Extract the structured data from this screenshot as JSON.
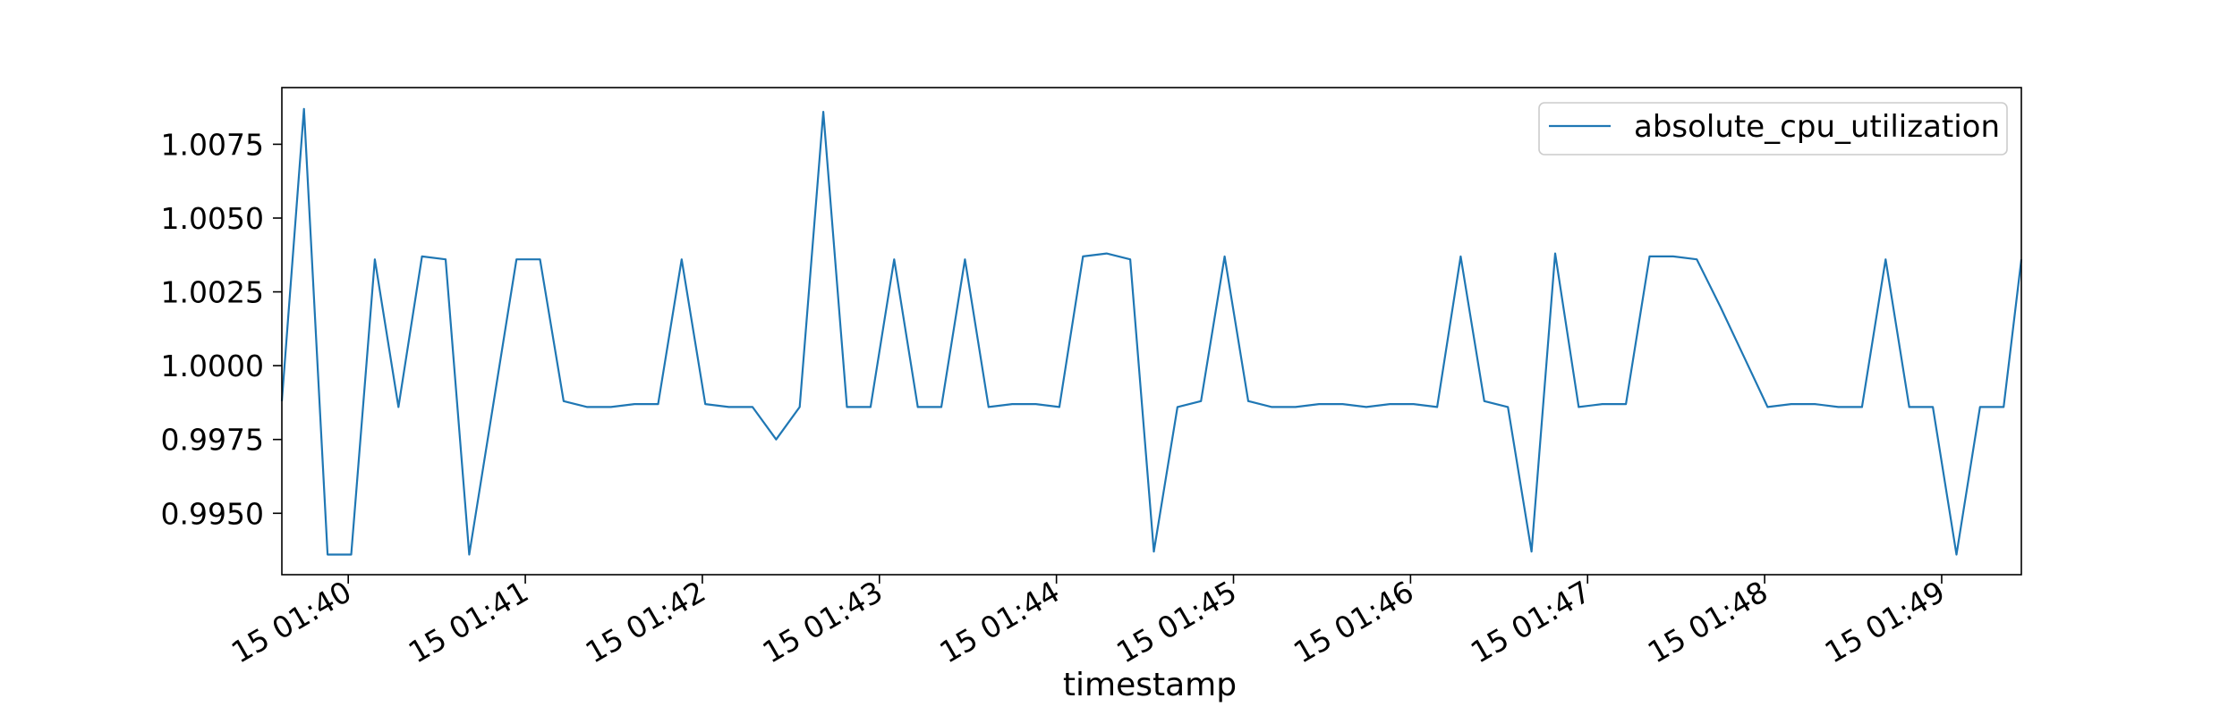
{
  "chart_data": {
    "type": "line",
    "xlabel": "timestamp",
    "ylabel": "",
    "title": "",
    "legend_position": "top-right",
    "grid": false,
    "line_color": "#1f77b4",
    "x_ticks": [
      {
        "value": 40,
        "label": "15 01:40"
      },
      {
        "value": 100,
        "label": "15 01:41"
      },
      {
        "value": 160,
        "label": "15 01:42"
      },
      {
        "value": 220,
        "label": "15 01:43"
      },
      {
        "value": 280,
        "label": "15 01:44"
      },
      {
        "value": 340,
        "label": "15 01:45"
      },
      {
        "value": 400,
        "label": "15 01:46"
      },
      {
        "value": 460,
        "label": "15 01:47"
      },
      {
        "value": 520,
        "label": "15 01:48"
      },
      {
        "value": 580,
        "label": "15 01:49"
      }
    ],
    "y_ticks": [
      {
        "value": 0.995,
        "label": "0.9950"
      },
      {
        "value": 0.9975,
        "label": "0.9975"
      },
      {
        "value": 1.0,
        "label": "1.0000"
      },
      {
        "value": 1.0025,
        "label": "1.0025"
      },
      {
        "value": 1.005,
        "label": "1.0050"
      },
      {
        "value": 1.0075,
        "label": "1.0075"
      }
    ],
    "xlim": [
      17.5,
      607.0
    ],
    "ylim": [
      0.99292,
      1.00942
    ],
    "series": [
      {
        "name": "absolute_cpu_utilization",
        "x": [
          17.5,
          25,
          33,
          41,
          49,
          57,
          65,
          73,
          81,
          89,
          97,
          105,
          113,
          121,
          129,
          137,
          145,
          153,
          161,
          169,
          177,
          185,
          193,
          201,
          209,
          217,
          225,
          233,
          241,
          249,
          257,
          265,
          273,
          281,
          289,
          297,
          305,
          313,
          321,
          329,
          337,
          345,
          353,
          361,
          369,
          377,
          385,
          393,
          401,
          409,
          417,
          425,
          433,
          441,
          449,
          457,
          465,
          473,
          481,
          489,
          497,
          505,
          513,
          521,
          529,
          537,
          545,
          553,
          561,
          569,
          577,
          585,
          593,
          601,
          607
        ],
        "y": [
          0.9988,
          1.0087,
          0.9936,
          0.9936,
          1.0036,
          0.9986,
          1.0037,
          1.0036,
          0.9936,
          0.9986,
          1.0036,
          1.0036,
          0.9988,
          0.9986,
          0.9986,
          0.9987,
          0.9987,
          1.0036,
          0.9987,
          0.9986,
          0.9986,
          0.9975,
          0.9986,
          1.0086,
          0.9986,
          0.9986,
          1.0036,
          0.9986,
          0.9986,
          1.0036,
          0.9986,
          0.9987,
          0.9987,
          0.9986,
          1.0037,
          1.0038,
          1.0036,
          0.9937,
          0.9986,
          0.9988,
          1.0037,
          0.9988,
          0.9986,
          0.9986,
          0.9987,
          0.9987,
          0.9986,
          0.9987,
          0.9987,
          0.9986,
          1.0037,
          0.9988,
          0.9986,
          0.9937,
          1.0038,
          0.9986,
          0.9987,
          0.9987,
          1.0037,
          1.0037,
          1.0036,
          1.002,
          1.0003,
          0.9986,
          0.9987,
          0.9987,
          0.9986,
          0.9986,
          1.0036,
          0.9986,
          0.9986,
          0.9936,
          0.9986,
          0.9986,
          1.0036
        ]
      }
    ]
  }
}
